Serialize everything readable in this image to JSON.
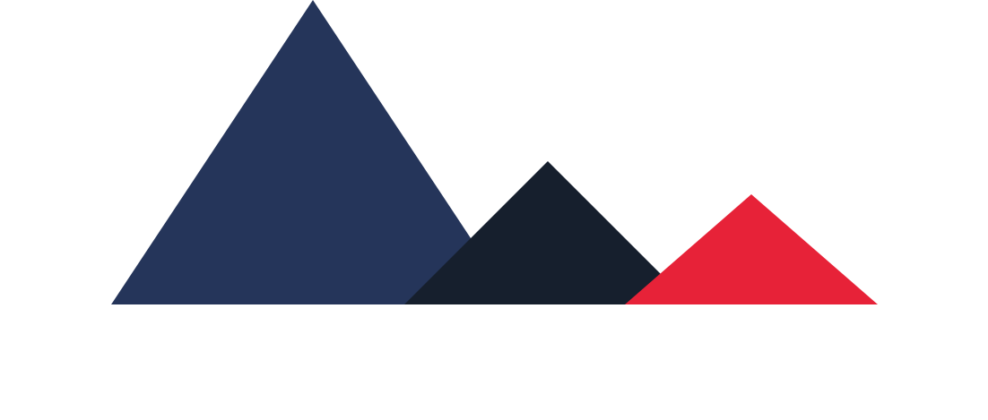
{
  "logo": {
    "name": "mountain-logo",
    "peaks": [
      {
        "name": "large-navy-peak",
        "color": "#25355A"
      },
      {
        "name": "medium-dark-peak",
        "color": "#161F2D"
      },
      {
        "name": "small-red-peak",
        "color": "#E72238"
      }
    ]
  }
}
